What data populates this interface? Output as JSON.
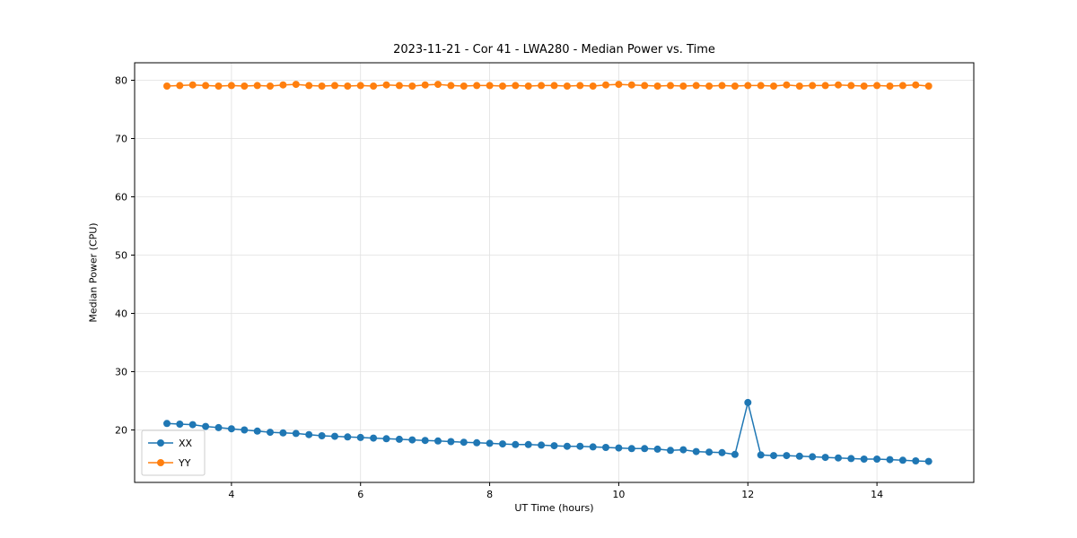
{
  "chart_data": {
    "type": "line",
    "title": "2023-11-21 - Cor 41 - LWA280 - Median Power vs. Time",
    "xlabel": "UT Time (hours)",
    "ylabel": "Median Power (CPU)",
    "xlim": [
      2.5,
      15.5
    ],
    "ylim": [
      11,
      83
    ],
    "xticks": [
      4,
      6,
      8,
      10,
      12,
      14
    ],
    "yticks": [
      20,
      30,
      40,
      50,
      60,
      70,
      80
    ],
    "grid": true,
    "legend_position": "lower left",
    "marker": "circle",
    "x": [
      3.0,
      3.2,
      3.4,
      3.6,
      3.8,
      4.0,
      4.2,
      4.4,
      4.6,
      4.8,
      5.0,
      5.2,
      5.4,
      5.6,
      5.8,
      6.0,
      6.2,
      6.4,
      6.6,
      6.8,
      7.0,
      7.2,
      7.4,
      7.6,
      7.8,
      8.0,
      8.2,
      8.4,
      8.6,
      8.8,
      9.0,
      9.2,
      9.4,
      9.6,
      9.8,
      10.0,
      10.2,
      10.4,
      10.6,
      10.8,
      11.0,
      11.2,
      11.4,
      11.6,
      11.8,
      12.0,
      12.2,
      12.4,
      12.6,
      12.8,
      13.0,
      13.2,
      13.4,
      13.6,
      13.8,
      14.0,
      14.2,
      14.4,
      14.6,
      14.8
    ],
    "series": [
      {
        "name": "XX",
        "color": "#1f77b4",
        "values": [
          21.1,
          21.0,
          20.9,
          20.6,
          20.4,
          20.2,
          20.0,
          19.8,
          19.6,
          19.5,
          19.4,
          19.2,
          19.0,
          18.9,
          18.8,
          18.7,
          18.6,
          18.5,
          18.4,
          18.3,
          18.2,
          18.1,
          18.0,
          17.9,
          17.8,
          17.7,
          17.6,
          17.5,
          17.5,
          17.4,
          17.3,
          17.2,
          17.2,
          17.1,
          17.0,
          16.9,
          16.8,
          16.8,
          16.7,
          16.5,
          16.6,
          16.3,
          16.2,
          16.1,
          15.8,
          24.7,
          15.7,
          15.6,
          15.6,
          15.5,
          15.4,
          15.3,
          15.2,
          15.1,
          15.0,
          15.0,
          14.9,
          14.8,
          14.7,
          14.6
        ]
      },
      {
        "name": "YY",
        "color": "#ff7f0e",
        "values": [
          79.0,
          79.1,
          79.2,
          79.1,
          79.0,
          79.1,
          79.0,
          79.1,
          79.0,
          79.2,
          79.3,
          79.1,
          79.0,
          79.1,
          79.0,
          79.1,
          79.0,
          79.2,
          79.1,
          79.0,
          79.2,
          79.3,
          79.1,
          79.0,
          79.1,
          79.1,
          79.0,
          79.1,
          79.0,
          79.1,
          79.1,
          79.0,
          79.1,
          79.0,
          79.2,
          79.3,
          79.2,
          79.1,
          79.0,
          79.1,
          79.0,
          79.1,
          79.0,
          79.1,
          79.0,
          79.1,
          79.1,
          79.0,
          79.2,
          79.0,
          79.1,
          79.1,
          79.2,
          79.1,
          79.0,
          79.1,
          79.0,
          79.1,
          79.2,
          79.0
        ]
      }
    ]
  }
}
